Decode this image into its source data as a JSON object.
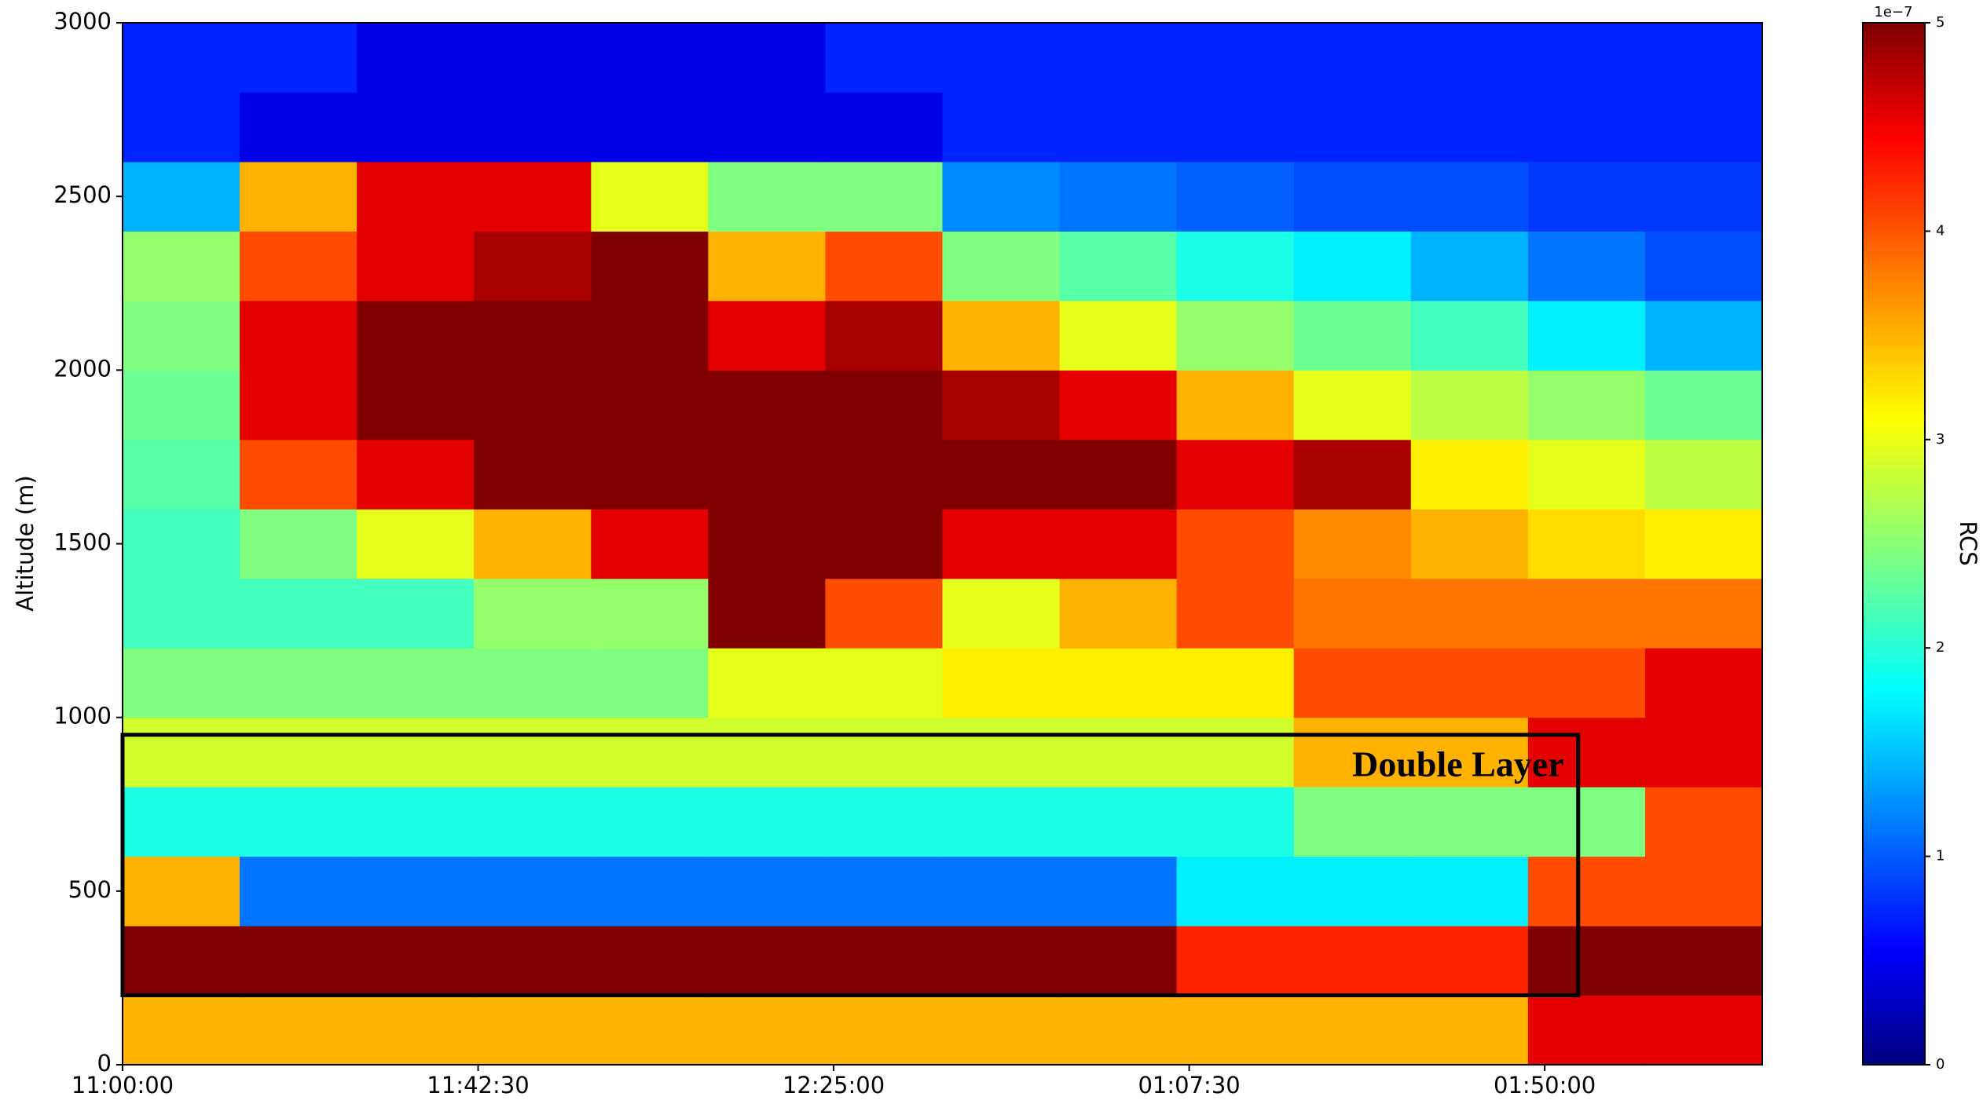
{
  "chart_data": {
    "type": "heatmap",
    "ylabel": "Altitude (m)",
    "xlim": [
      0,
      196
    ],
    "ylim": [
      0,
      3000
    ],
    "xticks": [
      {
        "value": 0,
        "label": "11:00:00"
      },
      {
        "value": 42.5,
        "label": "11:42:30"
      },
      {
        "value": 85,
        "label": "12:25:00"
      },
      {
        "value": 127.5,
        "label": "01:07:30"
      },
      {
        "value": 170,
        "label": "01:50:00"
      }
    ],
    "yticks": [
      0,
      500,
      1000,
      1500,
      2000,
      2500,
      3000
    ],
    "x_edges": [
      0,
      14,
      28,
      42,
      56,
      70,
      84,
      98,
      112,
      126,
      140,
      154,
      168,
      182,
      196
    ],
    "y_edges": [
      0,
      200,
      400,
      600,
      800,
      1000,
      1200,
      1400,
      1600,
      1800,
      2000,
      2200,
      2400,
      2600,
      2800,
      3000
    ],
    "values": [
      [
        3.5,
        3.5,
        3.5,
        3.5,
        3.5,
        3.5,
        3.5,
        3.5,
        3.5,
        3.5,
        3.5,
        3.5,
        4.5,
        4.5
      ],
      [
        5,
        5,
        5,
        5,
        5,
        5,
        5,
        5,
        5,
        4.2,
        4.2,
        4.2,
        5,
        5
      ],
      [
        3.5,
        1.2,
        1.2,
        1.2,
        1.2,
        1.2,
        1.2,
        1.2,
        1.2,
        1.8,
        1.8,
        1.8,
        4,
        4
      ],
      [
        2,
        2,
        2,
        2,
        2,
        2,
        2,
        2,
        2,
        2,
        2.5,
        2.5,
        2.5,
        4
      ],
      [
        2.9,
        2.9,
        2.9,
        2.9,
        2.9,
        2.9,
        2.9,
        2.9,
        2.9,
        2.9,
        3.5,
        3.5,
        4.5,
        4.5
      ],
      [
        2.5,
        2.5,
        2.5,
        2.5,
        2.5,
        3,
        3,
        3.2,
        3.2,
        3.2,
        4,
        4,
        4,
        4.5
      ],
      [
        2.2,
        2.2,
        2.2,
        2.6,
        2.6,
        5,
        4,
        3,
        3.5,
        4,
        3.8,
        3.8,
        3.8,
        3.8
      ],
      [
        2.2,
        2.5,
        3,
        3.5,
        4.5,
        5,
        5,
        4.5,
        4.5,
        4,
        3.7,
        3.5,
        3.3,
        3.2
      ],
      [
        2.3,
        4,
        4.5,
        5,
        5,
        5,
        5,
        5,
        5,
        4.5,
        4.8,
        3.2,
        3,
        2.8
      ],
      [
        2.4,
        4.5,
        5,
        5,
        5,
        5,
        5,
        4.8,
        4.5,
        3.5,
        3,
        2.8,
        2.6,
        2.4
      ],
      [
        2.5,
        4.5,
        5,
        5,
        5,
        4.5,
        4.8,
        3.5,
        3,
        2.6,
        2.4,
        2.2,
        1.8,
        1.5
      ],
      [
        2.6,
        4,
        4.5,
        4.8,
        5,
        3.5,
        4,
        2.5,
        2.3,
        2,
        1.8,
        1.5,
        1.2,
        1
      ],
      [
        1.5,
        3.5,
        4.5,
        4.5,
        3,
        2.5,
        2.5,
        1.3,
        1.2,
        1.1,
        1,
        1,
        0.9,
        0.9
      ],
      [
        0.8,
        0.5,
        0.5,
        0.5,
        0.5,
        0.5,
        0.5,
        0.8,
        0.8,
        0.8,
        0.8,
        0.8,
        0.8,
        0.8
      ],
      [
        0.8,
        0.8,
        0.5,
        0.5,
        0.5,
        0.5,
        0.8,
        0.8,
        0.8,
        0.8,
        0.8,
        0.8,
        0.8,
        0.8
      ]
    ],
    "colormap": "jet",
    "colorbar": {
      "label": "RCS",
      "offset_label": "1e−7",
      "lim": [
        0,
        5
      ],
      "ticks": [
        0,
        1,
        2,
        3,
        4,
        5
      ]
    },
    "annotation": {
      "text": "Double Layer",
      "xlim": [
        0,
        174
      ],
      "ylim": [
        200,
        950
      ]
    }
  }
}
